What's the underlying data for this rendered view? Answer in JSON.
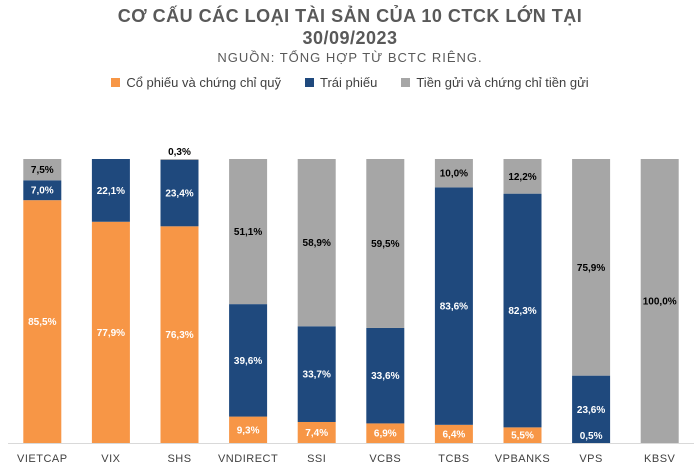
{
  "title_line1": "CƠ CẤU CÁC LOẠI TÀI SẢN CỦA 10 CTCK LỚN TẠI",
  "title_line2": "30/09/2023",
  "subtitle": "NGUỒN: TỔNG HỢP TỪ BCTC RIÊNG.",
  "colors": {
    "stocks": "#F79646",
    "bonds": "#1F497D",
    "deposits": "#A6A6A6"
  },
  "chart_data": {
    "type": "bar",
    "stacked": true,
    "percent_stacked": true,
    "title": "CƠ CẤU CÁC LOẠI TÀI SẢN CỦA 10 CTCK LỚN TẠI 30/09/2023",
    "subtitle": "NGUỒN: TỔNG HỢP TỪ BCTC RIÊNG.",
    "legend_position": "top",
    "grid": false,
    "ylim": [
      0,
      100
    ],
    "categories": [
      "VIETCAP",
      "VIX",
      "SHS",
      "VNDIRECT",
      "SSI",
      "VCBS",
      "TCBS",
      "VPBANKS",
      "VPS",
      "KBSV"
    ],
    "series": [
      {
        "name": "Cổ phiếu và chứng chỉ quỹ",
        "values": [
          85.5,
          77.9,
          76.3,
          9.3,
          7.4,
          6.9,
          6.4,
          5.5,
          0,
          0
        ],
        "labels": [
          "85,5%",
          "77,9%",
          "76,3%",
          "9,3%",
          "7,4%",
          "6,9%",
          "6,4%",
          "5,5%",
          "",
          ""
        ]
      },
      {
        "name": "Trái phiếu",
        "values": [
          7.0,
          22.1,
          23.4,
          39.6,
          33.7,
          33.6,
          83.6,
          82.3,
          23.6,
          0
        ],
        "labels": [
          "7,0%",
          "22,1%",
          "23,4%",
          "39,6%",
          "33,7%",
          "33,6%",
          "83,6%",
          "82,3%",
          "23,6%",
          ""
        ]
      },
      {
        "name": "Tiền gửi và chứng chỉ tiền gửi",
        "values": [
          7.5,
          0,
          0.3,
          51.1,
          58.9,
          59.5,
          10.0,
          12.2,
          75.9,
          100.0
        ],
        "labels": [
          "7,5%",
          "",
          "0,3%",
          "51,1%",
          "58,9%",
          "59,5%",
          "10,0%",
          "12,2%",
          "75,9%",
          "100,0%"
        ]
      }
    ],
    "extra_labels": [
      {
        "category": "VPS",
        "text": "0,5%"
      }
    ]
  }
}
